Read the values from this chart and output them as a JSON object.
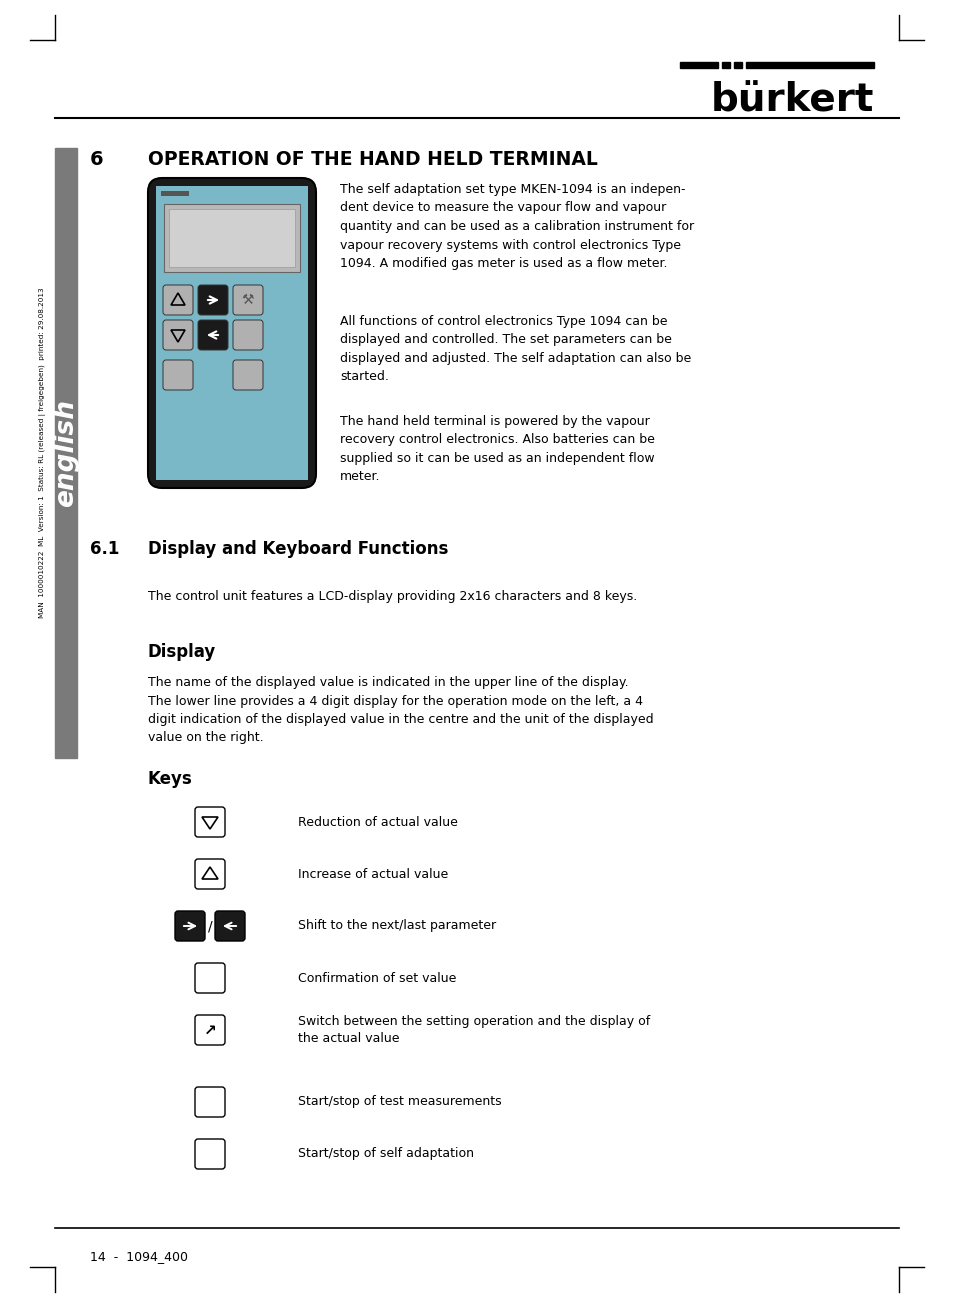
{
  "page_bg": "#ffffff",
  "sidebar_color": "#7a7a7a",
  "sidebar_text": "english",
  "sidebar_meta": "MAN  1000010222  ML  Version: 1  Status: RL (released | freigegeben)  printed: 29.08.2013",
  "section_number": "6",
  "section_title": "OPERATION OF THE HAND HELD TERMINAL",
  "body_text_1": "The self adaptation set type MKEN-1094 is an indepen-\ndent device to measure the vapour flow and vapour\nquantity and can be used as a calibration instrument for\nvapour recovery systems with control electronics Type\n1094. A modified gas meter is used as a flow meter.",
  "body_text_2": "All functions of control electronics Type 1094 can be\ndisplayed and controlled. The set parameters can be\ndisplayed and adjusted. The self adaptation can also be\nstarted.",
  "body_text_3": "The hand held terminal is powered by the vapour\nrecovery control electronics. Also batteries can be\nsupplied so it can be used as an independent flow\nmeter.",
  "subsection_num": "6.1",
  "subsection_title": "Display and Keyboard Functions",
  "subsection_para": "The control unit features a LCD-display providing 2x16 characters and 8 keys.",
  "display_heading": "Display",
  "display_para": "The name of the displayed value is indicated in the upper line of the display.\nThe lower line provides a 4 digit display for the operation mode on the left, a 4\ndigit indication of the displayed value in the centre and the unit of the displayed\nvalue on the right.",
  "keys_heading": "Keys",
  "keys": [
    {
      "label": "Reduction of actual value",
      "symbol": "down_triangle"
    },
    {
      "label": "Increase of actual value",
      "symbol": "up_triangle"
    },
    {
      "label": "Shift to the next/last parameter",
      "symbol": "arrows_lr"
    },
    {
      "label": "Confirmation of set value",
      "symbol": "empty_box"
    },
    {
      "label": "Switch between the setting operation and the display of\nthe actual value",
      "symbol": "hand"
    },
    {
      "label": "Start/stop of test measurements",
      "symbol": "empty_box_small"
    },
    {
      "label": "Start/stop of self adaptation",
      "symbol": "empty_box_small2"
    }
  ],
  "footer_text": "14  -  1094_400",
  "device_color_body": "#1a1a1a",
  "device_color_screen_bg": "#7ab8c8",
  "device_color_display_bg": "#b8b8b8",
  "device_color_display_inner": "#d0d0d0",
  "device_color_btn_dark": "#1a1a1a",
  "device_color_btn_light": "#b0b0b0"
}
